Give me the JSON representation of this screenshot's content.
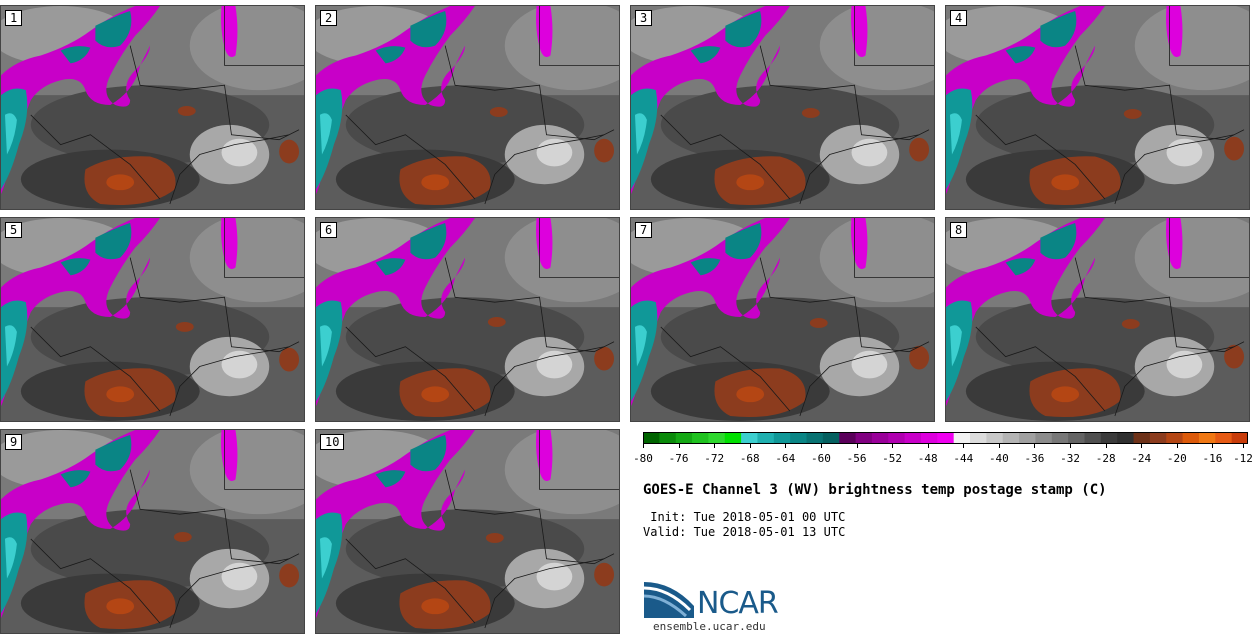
{
  "title": "GOES-E Channel 3 (WV) brightness temp postage stamp (C)",
  "init": " Init: Tue 2018-05-01 00 UTC",
  "valid": "Valid: Tue 2018-05-01 13 UTC",
  "logo": {
    "text": "NCAR",
    "site": "ensemble.ucar.edu"
  },
  "panels": [
    {
      "label": "1"
    },
    {
      "label": "2"
    },
    {
      "label": "3"
    },
    {
      "label": "4"
    },
    {
      "label": "5"
    },
    {
      "label": "6"
    },
    {
      "label": "7"
    },
    {
      "label": "8"
    },
    {
      "label": "9"
    },
    {
      "label": "10"
    }
  ],
  "colorbar": {
    "colors": [
      "#006400",
      "#0a8a0a",
      "#14a814",
      "#1fc21f",
      "#2ed82e",
      "#00e000",
      "#3ccfcf",
      "#20b0b0",
      "#109898",
      "#0a8585",
      "#087272",
      "#056060",
      "#5a005a",
      "#800080",
      "#990099",
      "#b000b0",
      "#c800c8",
      "#dd00dd",
      "#f000f0",
      "#f2f2f2",
      "#dcdcdc",
      "#c8c8c8",
      "#b4b4b4",
      "#a0a0a0",
      "#8c8c8c",
      "#787878",
      "#646464",
      "#505050",
      "#3c3c3c",
      "#303030",
      "#6e3219",
      "#8c3c1e",
      "#b44614",
      "#dc5a0a",
      "#f07814",
      "#e65a14",
      "#c83c0a"
    ],
    "tick_labels": [
      "-80",
      "-76",
      "-72",
      "-68",
      "-64",
      "-60",
      "-56",
      "-52",
      "-48",
      "-44",
      "-40",
      "-36",
      "-32",
      "-28",
      "-24",
      "-20",
      "-16",
      "-12"
    ]
  }
}
